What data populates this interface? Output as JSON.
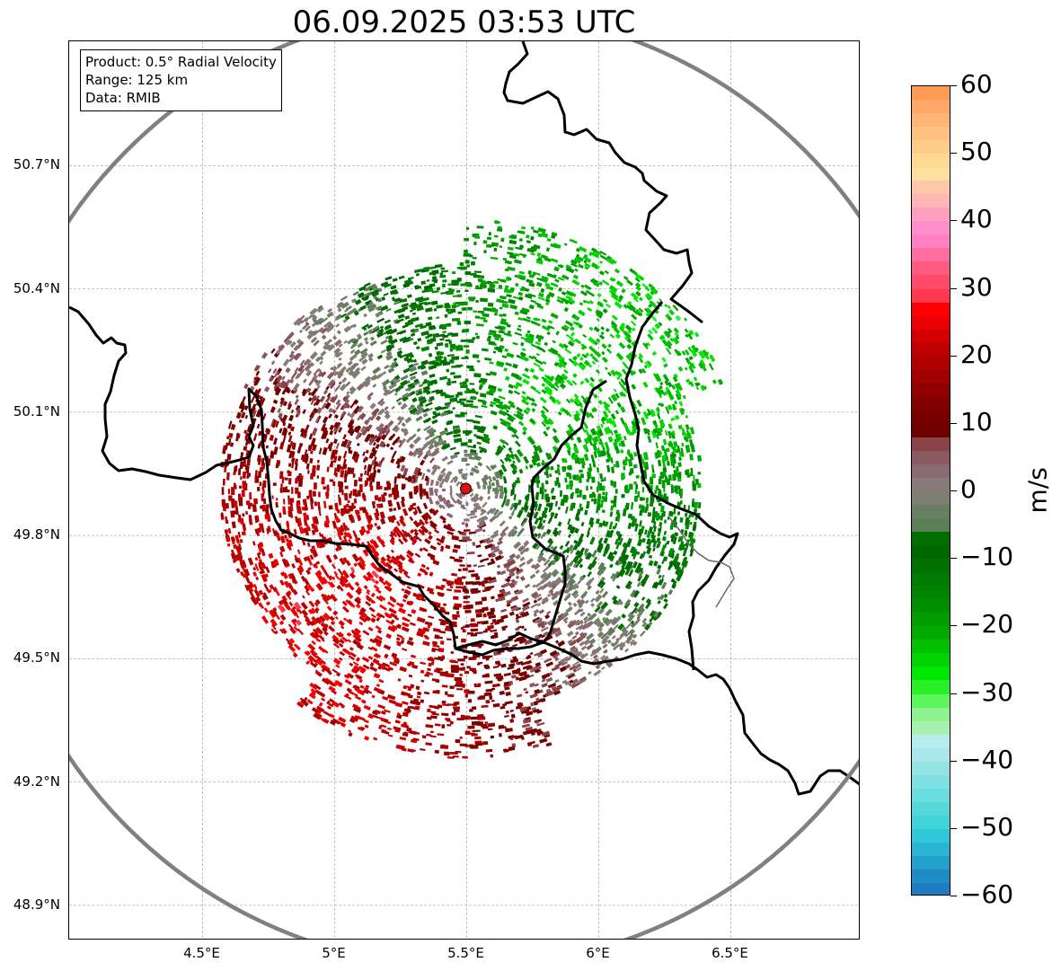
{
  "title": "06.09.2025 03:53 UTC",
  "info": {
    "product": "Product: 0.5° Radial Velocity",
    "range": "Range: 125 km",
    "source": "Data: RMIB"
  },
  "map": {
    "lon_range": [
      4.0,
      7.0
    ],
    "lat_range": [
      48.8,
      50.99
    ],
    "radar_site": {
      "lon": 5.505,
      "lat": 49.914
    },
    "range_ring_km": 125,
    "gridline_color": "#b0b0b0",
    "border_color": "#000000",
    "ring_color": "#808080"
  },
  "axes": {
    "y_ticks": [
      {
        "lat": 50.7,
        "label": "50.7°N"
      },
      {
        "lat": 50.4,
        "label": "50.4°N"
      },
      {
        "lat": 50.1,
        "label": "50.1°N"
      },
      {
        "lat": 49.8,
        "label": "49.8°N"
      },
      {
        "lat": 49.5,
        "label": "49.5°N"
      },
      {
        "lat": 49.2,
        "label": "49.2°N"
      },
      {
        "lat": 48.9,
        "label": "48.9°N"
      }
    ],
    "x_ticks": [
      {
        "lon": 4.5,
        "label": "4.5°E"
      },
      {
        "lon": 5.0,
        "label": "5°E"
      },
      {
        "lon": 5.5,
        "label": "5.5°E"
      },
      {
        "lon": 6.0,
        "label": "6°E"
      },
      {
        "lon": 6.5,
        "label": "6.5°E"
      }
    ]
  },
  "colorbar": {
    "unit": "m/s",
    "min": -60,
    "max": 60,
    "ticks": [
      {
        "value": 60,
        "label": "60"
      },
      {
        "value": 50,
        "label": "50"
      },
      {
        "value": 40,
        "label": "40"
      },
      {
        "value": 30,
        "label": "30"
      },
      {
        "value": 20,
        "label": "20"
      },
      {
        "value": 10,
        "label": "10"
      },
      {
        "value": 0,
        "label": "0"
      },
      {
        "value": -10,
        "label": "−10"
      },
      {
        "value": -20,
        "label": "−20"
      },
      {
        "value": -30,
        "label": "−30"
      },
      {
        "value": -40,
        "label": "−40"
      },
      {
        "value": -50,
        "label": "−50"
      },
      {
        "value": -60,
        "label": "−60"
      }
    ],
    "stops": [
      {
        "from": 58,
        "to": 60,
        "color": "#ff9a55"
      },
      {
        "from": 56,
        "to": 58,
        "color": "#ffa865"
      },
      {
        "from": 54,
        "to": 56,
        "color": "#ffb575"
      },
      {
        "from": 52,
        "to": 54,
        "color": "#ffc080"
      },
      {
        "from": 50,
        "to": 52,
        "color": "#ffcb8a"
      },
      {
        "from": 48,
        "to": 50,
        "color": "#ffd98f"
      },
      {
        "from": 46,
        "to": 48,
        "color": "#ffe0a0"
      },
      {
        "from": 44,
        "to": 46,
        "color": "#ffc8a8"
      },
      {
        "from": 42,
        "to": 44,
        "color": "#ffb6b6"
      },
      {
        "from": 40,
        "to": 42,
        "color": "#ffa0c0"
      },
      {
        "from": 38,
        "to": 40,
        "color": "#ff8fcc"
      },
      {
        "from": 36,
        "to": 38,
        "color": "#ff80c0"
      },
      {
        "from": 34,
        "to": 36,
        "color": "#ff6e9e"
      },
      {
        "from": 32,
        "to": 34,
        "color": "#ff5a80"
      },
      {
        "from": 30,
        "to": 32,
        "color": "#ff4a6a"
      },
      {
        "from": 28,
        "to": 30,
        "color": "#ff3a50"
      },
      {
        "from": 26,
        "to": 28,
        "color": "#ff0000"
      },
      {
        "from": 24,
        "to": 26,
        "color": "#ea0000"
      },
      {
        "from": 22,
        "to": 24,
        "color": "#d40000"
      },
      {
        "from": 20,
        "to": 22,
        "color": "#c00000"
      },
      {
        "from": 18,
        "to": 20,
        "color": "#b00000"
      },
      {
        "from": 16,
        "to": 18,
        "color": "#a00000"
      },
      {
        "from": 14,
        "to": 16,
        "color": "#900000"
      },
      {
        "from": 12,
        "to": 14,
        "color": "#820000"
      },
      {
        "from": 10,
        "to": 12,
        "color": "#760000"
      },
      {
        "from": 8,
        "to": 10,
        "color": "#6e0000"
      },
      {
        "from": 6,
        "to": 8,
        "color": "#8a4448"
      },
      {
        "from": 4,
        "to": 6,
        "color": "#8a5a62"
      },
      {
        "from": 2,
        "to": 4,
        "color": "#8a6a72"
      },
      {
        "from": 0,
        "to": 2,
        "color": "#897a7a"
      },
      {
        "from": -2,
        "to": 0,
        "color": "#7e7e72"
      },
      {
        "from": -4,
        "to": -2,
        "color": "#6a7e62"
      },
      {
        "from": -6,
        "to": -4,
        "color": "#5a7e56"
      },
      {
        "from": -8,
        "to": -6,
        "color": "#006e00"
      },
      {
        "from": -10,
        "to": -8,
        "color": "#006600"
      },
      {
        "from": -12,
        "to": -10,
        "color": "#007000"
      },
      {
        "from": -14,
        "to": -12,
        "color": "#007a00"
      },
      {
        "from": -16,
        "to": -14,
        "color": "#008400"
      },
      {
        "from": -18,
        "to": -16,
        "color": "#008f00"
      },
      {
        "from": -20,
        "to": -18,
        "color": "#009c00"
      },
      {
        "from": -22,
        "to": -20,
        "color": "#00aa00"
      },
      {
        "from": -24,
        "to": -22,
        "color": "#00c000"
      },
      {
        "from": -26,
        "to": -24,
        "color": "#00d400"
      },
      {
        "from": -28,
        "to": -26,
        "color": "#00e800"
      },
      {
        "from": -30,
        "to": -28,
        "color": "#2af02a"
      },
      {
        "from": -32,
        "to": -30,
        "color": "#5cf55c"
      },
      {
        "from": -34,
        "to": -32,
        "color": "#8ef28e"
      },
      {
        "from": -36,
        "to": -34,
        "color": "#a8f0b0"
      },
      {
        "from": -38,
        "to": -36,
        "color": "#b8ecec"
      },
      {
        "from": -40,
        "to": -38,
        "color": "#a8e8ea"
      },
      {
        "from": -42,
        "to": -40,
        "color": "#94e4e6"
      },
      {
        "from": -44,
        "to": -42,
        "color": "#7ee0e2"
      },
      {
        "from": -46,
        "to": -44,
        "color": "#68dcdf"
      },
      {
        "from": -48,
        "to": -46,
        "color": "#54d8dc"
      },
      {
        "from": -50,
        "to": -48,
        "color": "#40d4da"
      },
      {
        "from": -52,
        "to": -50,
        "color": "#30c8d8"
      },
      {
        "from": -54,
        "to": -52,
        "color": "#28b4d2"
      },
      {
        "from": -56,
        "to": -54,
        "color": "#24a0cc"
      },
      {
        "from": -58,
        "to": -56,
        "color": "#1f8cc6"
      },
      {
        "from": -60,
        "to": -58,
        "color": "#1f7cc0"
      }
    ]
  }
}
